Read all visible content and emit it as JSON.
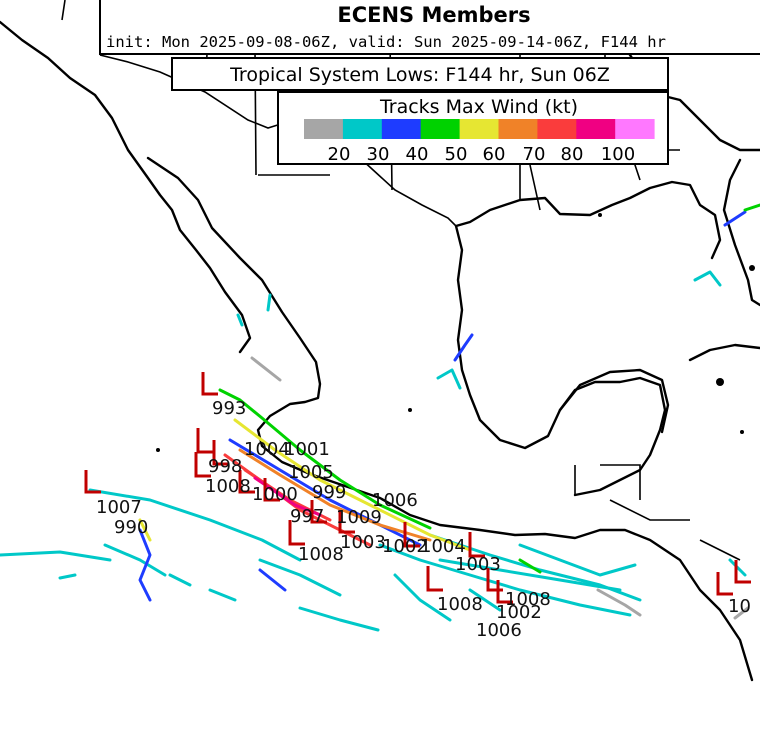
{
  "header": {
    "title": "ECENS Members",
    "subtitle": "init: Mon 2025-09-08-06Z, valid: Sun 2025-09-14-06Z, F144 hr"
  },
  "panel_title": "Tropical System Lows: F144 hr, Sun 06Z",
  "legend": {
    "title": "Tracks Max Wind (kt)",
    "colors": [
      "#a6a6a6",
      "#00c8c8",
      "#1e3cff",
      "#00d200",
      "#e6e632",
      "#f08228",
      "#fa3c3c",
      "#f00082",
      "#ff78ff"
    ],
    "tick_labels": [
      "20",
      "30",
      "40",
      "50",
      "60",
      "70",
      "80",
      "100"
    ]
  },
  "pressure_labels": [
    "993",
    "1001",
    "1007",
    "990",
    "1006",
    "1008",
    "1003",
    "1008",
    "1008",
    "1002",
    "1006",
    "1008",
    "1009",
    "1004",
    "998",
    "1005",
    "1000",
    "997",
    "1003",
    "999",
    "1002",
    "1004",
    "10"
  ]
}
